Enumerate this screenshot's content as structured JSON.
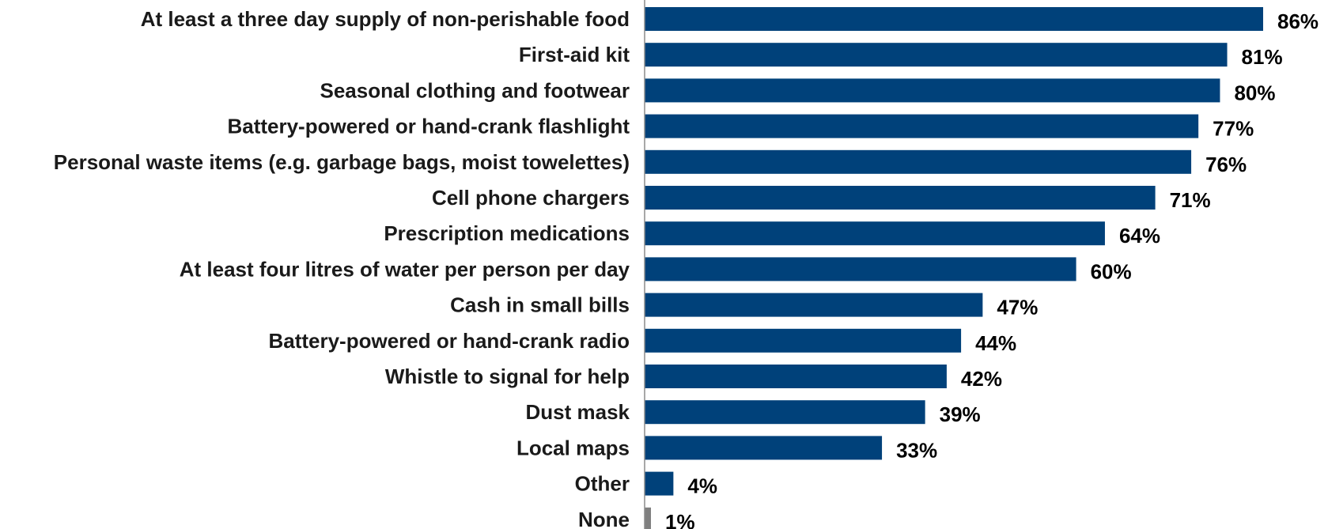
{
  "chart_data": {
    "type": "bar",
    "orientation": "horizontal",
    "categories": [
      "At least a three day supply of non-perishable food",
      "First-aid kit",
      "Seasonal clothing and footwear",
      "Battery-powered or hand-crank flashlight",
      "Personal waste items (e.g. garbage bags, moist towelettes)",
      "Cell phone chargers",
      "Prescription medications",
      "At least four litres of water per person per day",
      "Cash in small bills",
      "Battery-powered or hand-crank radio",
      "Whistle to signal for help",
      "Dust mask",
      "Local maps",
      "Other",
      "None"
    ],
    "values": [
      86,
      81,
      80,
      77,
      76,
      71,
      64,
      60,
      47,
      44,
      42,
      39,
      33,
      4,
      1
    ],
    "value_labels": [
      "86%",
      "81%",
      "80%",
      "77%",
      "76%",
      "71%",
      "64%",
      "60%",
      "47%",
      "44%",
      "42%",
      "39%",
      "33%",
      "4%",
      "1%"
    ],
    "bar_colors": [
      "#00417a",
      "#00417a",
      "#00417a",
      "#00417a",
      "#00417a",
      "#00417a",
      "#00417a",
      "#00417a",
      "#00417a",
      "#00417a",
      "#00417a",
      "#00417a",
      "#00417a",
      "#00417a",
      "#7f7f7f"
    ],
    "xlim": [
      0,
      86
    ],
    "title": "",
    "xlabel": "",
    "ylabel": "",
    "grid": false,
    "legend": "none"
  }
}
